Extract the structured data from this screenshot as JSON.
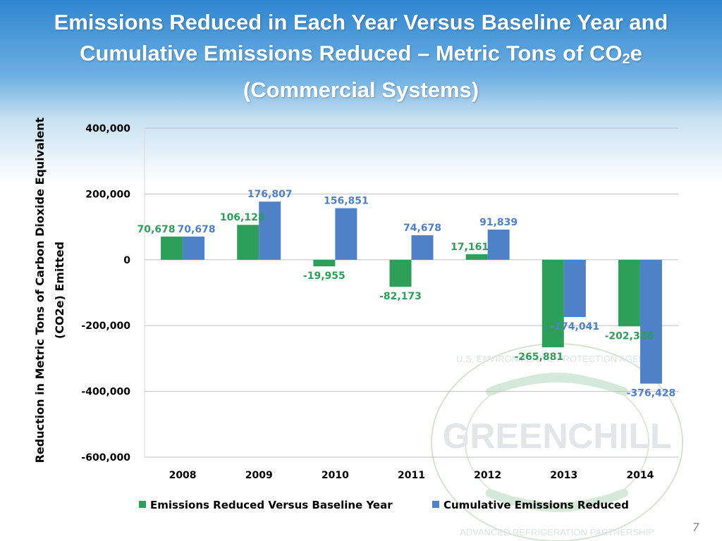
{
  "title": {
    "line1": "Emissions Reduced in Each Year Versus Baseline Year and",
    "line2_prefix": "Cumulative Emissions Reduced – Metric Tons of CO",
    "line2_sub": "2",
    "line2_suffix": "e",
    "line3": "(Commercial Systems)"
  },
  "watermark": {
    "text": "GREENCHILL",
    "ring_top": "U.S. ENVIRONMENTAL PROTECTION AGENCY",
    "ring_bottom": "ADVANCED REFRIGERATION PARTNERSHIP"
  },
  "page_number": "7",
  "colors": {
    "green": "#2e9e5b",
    "blue": "#4f81c7",
    "grid": "#bfbfbf",
    "axis_text": "#000000"
  },
  "chart_data": {
    "type": "bar",
    "categories": [
      "2008",
      "2009",
      "2010",
      "2011",
      "2012",
      "2013",
      "2014"
    ],
    "series": [
      {
        "name": "Emissions Reduced Versus Baseline Year",
        "color": "#2e9e5b",
        "values": [
          70678,
          106128,
          -19955,
          -82173,
          17161,
          -265881,
          -202386
        ],
        "labels": [
          "70,678",
          "106,128",
          "-19,955",
          "-82,173",
          "17,161",
          "-265,881",
          "-202,386"
        ]
      },
      {
        "name": "Cumulative Emissions Reduced",
        "color": "#4f81c7",
        "values": [
          70678,
          176807,
          156851,
          74678,
          91839,
          -174041,
          -376428
        ],
        "labels": [
          "70,678",
          "176,807",
          "156,851",
          "74,678",
          "91,839",
          "-174,041",
          "-376,428"
        ]
      }
    ],
    "ylabel_line1": "Reduction in Metric Tons of Carbon Dioxide Equivalent",
    "ylabel_line2": "(CO2e)  Emitted",
    "yticks": [
      400000,
      200000,
      0,
      -200000,
      -400000,
      -600000
    ],
    "ytick_labels": [
      "400,000",
      "200,000",
      "0",
      "-200,000",
      "-400,000",
      "-600,000"
    ],
    "ylim": [
      -600000,
      400000
    ],
    "grid": true,
    "legend_position": "bottom"
  }
}
